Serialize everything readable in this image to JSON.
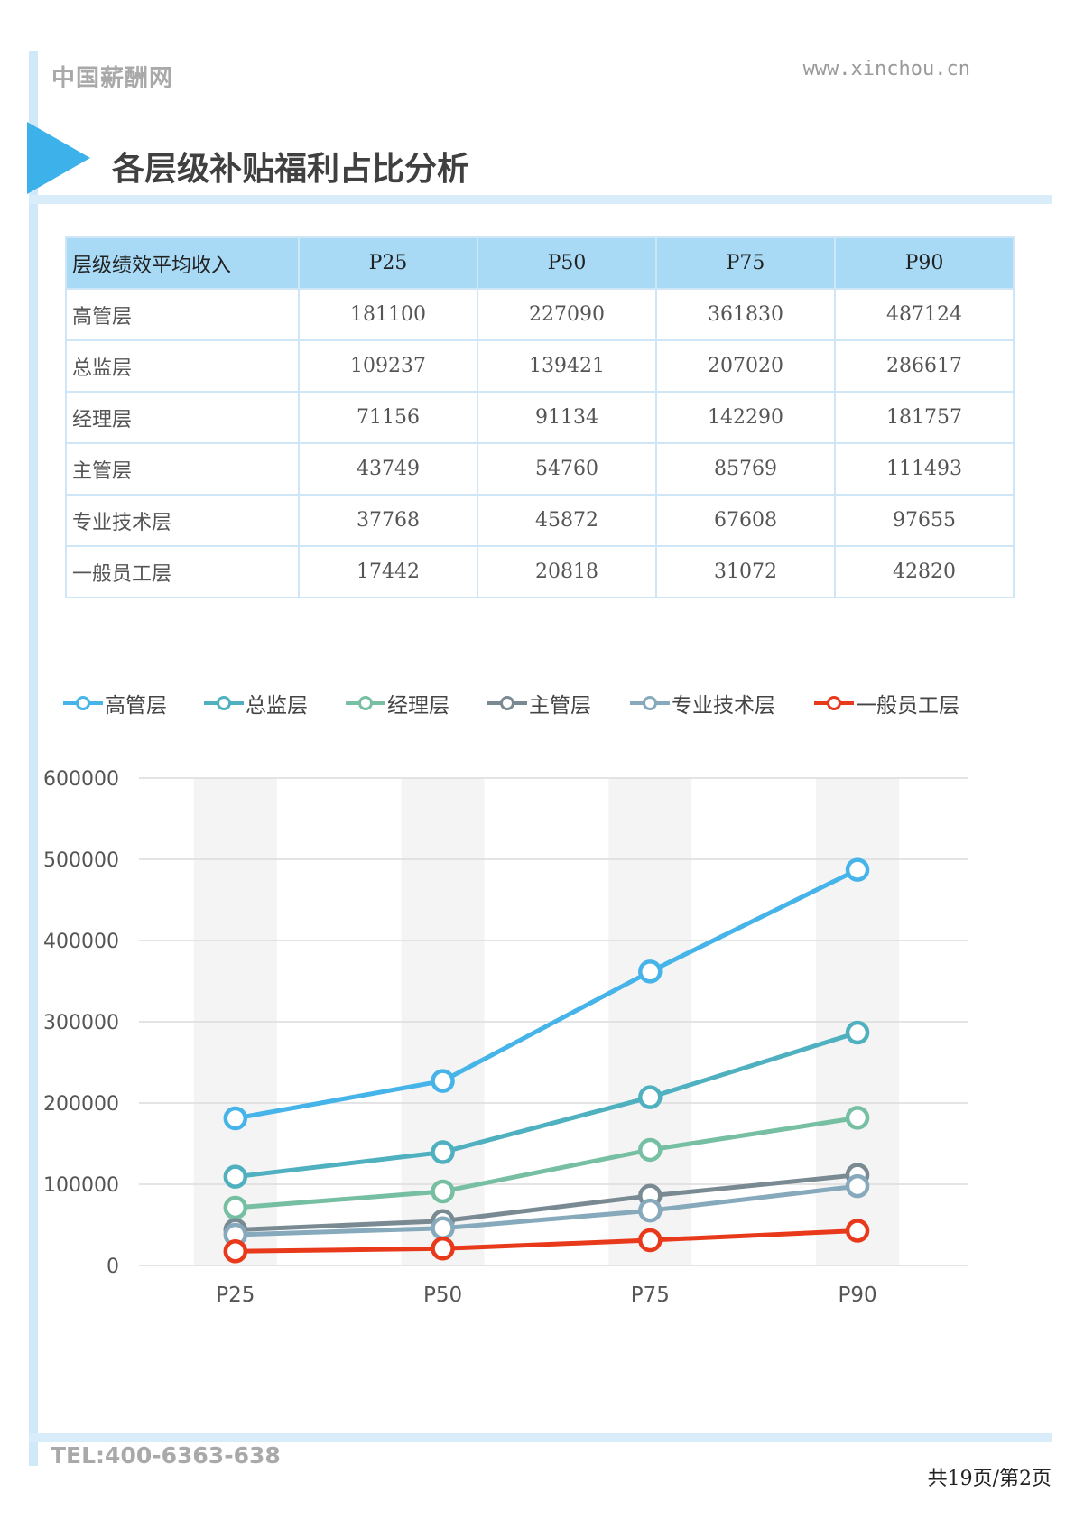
{
  "header": {
    "brand": "中国薪酬网",
    "site": "www.xinchou.cn"
  },
  "title": "各层级补贴福利占比分析",
  "table": {
    "headers": [
      "层级绩效平均收入",
      "P25",
      "P50",
      "P75",
      "P90"
    ],
    "rows": [
      [
        "高管层",
        "181100",
        "227090",
        "361830",
        "487124"
      ],
      [
        "总监层",
        "109237",
        "139421",
        "207020",
        "286617"
      ],
      [
        "经理层",
        "71156",
        "91134",
        "142290",
        "181757"
      ],
      [
        "主管层",
        "43749",
        "54760",
        "85769",
        "111493"
      ],
      [
        "专业技术层",
        "37768",
        "45872",
        "67608",
        "97655"
      ],
      [
        "一般员工层",
        "17442",
        "20818",
        "31072",
        "42820"
      ]
    ]
  },
  "chart_data": {
    "type": "line",
    "categories": [
      "P25",
      "P50",
      "P75",
      "P90"
    ],
    "ylim": [
      0,
      600000
    ],
    "yticks": [
      0,
      100000,
      200000,
      300000,
      400000,
      500000,
      600000
    ],
    "legend_position": "top",
    "grid": true,
    "series": [
      {
        "name": "高管层",
        "color": "#46b4e8",
        "values": [
          181100,
          227090,
          361830,
          487124
        ]
      },
      {
        "name": "总监层",
        "color": "#4fb0c0",
        "values": [
          109237,
          139421,
          207020,
          286617
        ]
      },
      {
        "name": "经理层",
        "color": "#76bfa3",
        "values": [
          71156,
          91134,
          142290,
          181757
        ]
      },
      {
        "name": "主管层",
        "color": "#7a8a93",
        "values": [
          43749,
          54760,
          85769,
          111493
        ]
      },
      {
        "name": "专业技术层",
        "color": "#86aabc",
        "values": [
          37768,
          45872,
          67608,
          97655
        ]
      },
      {
        "name": "一般员工层",
        "color": "#e8391b",
        "values": [
          17442,
          20818,
          31072,
          42820
        ]
      }
    ]
  },
  "footer": {
    "tel": "TEL:400-6363-638",
    "page": "共19页/第2页"
  }
}
